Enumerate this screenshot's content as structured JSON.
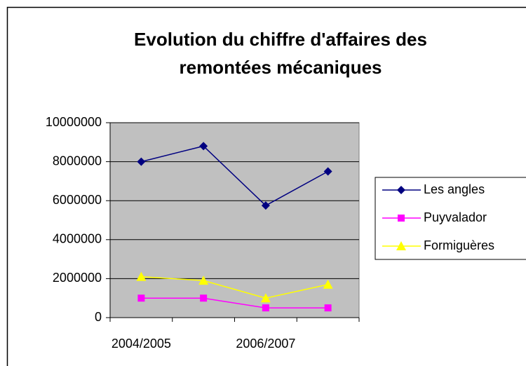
{
  "chart_data": {
    "type": "line",
    "title": "Evolution du chiffre d'affaires des remontées mécaniques",
    "categories": [
      "2004/2005",
      null,
      "2006/2007",
      null
    ],
    "series": [
      {
        "name": "Les angles",
        "color": "#000080",
        "marker": "diamond",
        "values": [
          8000000,
          8800000,
          5750000,
          7500000
        ]
      },
      {
        "name": "Puyvalador",
        "color": "#ff00ff",
        "marker": "square",
        "values": [
          1000000,
          1000000,
          500000,
          500000
        ]
      },
      {
        "name": "Formiguères",
        "color": "#ffff00",
        "marker": "triangle",
        "values": [
          2100000,
          1900000,
          1000000,
          1700000
        ]
      }
    ],
    "ylim": [
      0,
      10000000
    ],
    "yticks": [
      0,
      2000000,
      4000000,
      6000000,
      8000000,
      10000000
    ],
    "grid": true,
    "legend": "right"
  }
}
